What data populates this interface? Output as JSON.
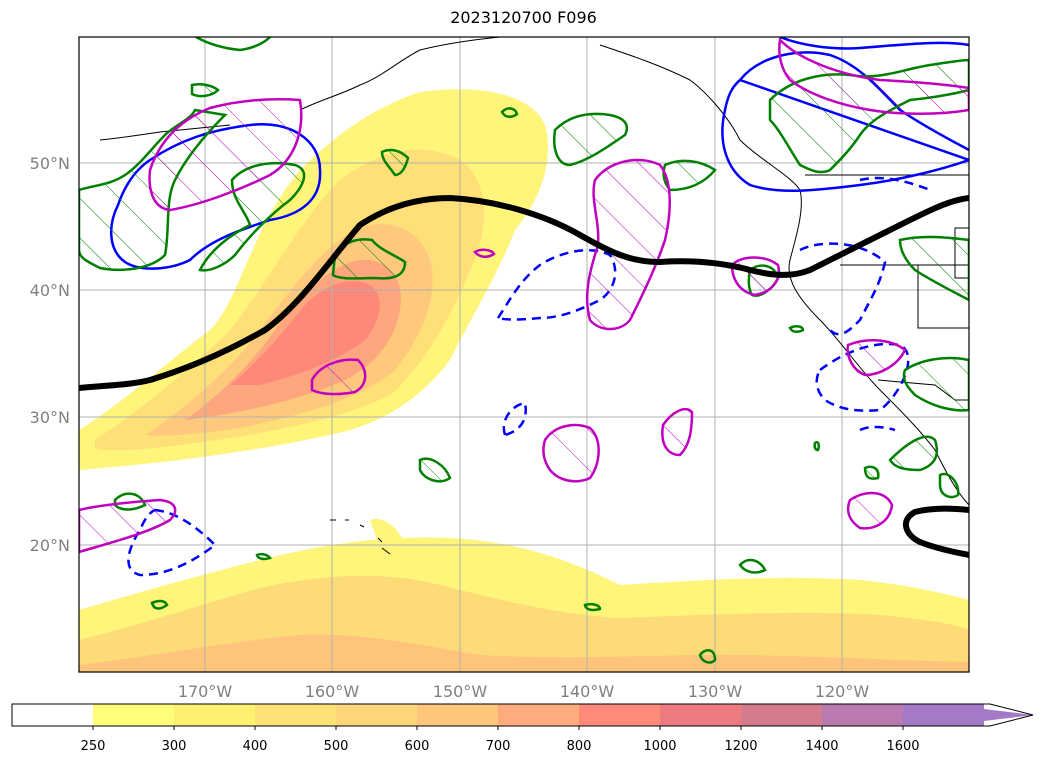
{
  "title": "2023120700 F096",
  "latitude_labels": [
    "50°N",
    "40°N",
    "30°N",
    "20°N"
  ],
  "longitude_labels": [
    "170°W",
    "160°W",
    "150°W",
    "140°W",
    "130°W",
    "120°W"
  ],
  "colorbar": {
    "levels": [
      "250",
      "300",
      "400",
      "500",
      "600",
      "700",
      "800",
      "1000",
      "1200",
      "1400",
      "1600"
    ],
    "colors": [
      "#ffffff",
      "#fefe7a",
      "#fef070",
      "#fee277",
      "#fed67a",
      "#fec67a",
      "#feab7d",
      "#fe8a7a",
      "#ec7a7f",
      "#d47b8c",
      "#b87ab0",
      "#a47ac8"
    ],
    "extend": "max"
  },
  "map_colors": {
    "ocean": "#ffffff",
    "grid": "#b0b0b0",
    "jet_line": "#000000",
    "green_contour": "#008000",
    "magenta_contour": "#c000c0",
    "blue_contour": "#0000ff"
  }
}
